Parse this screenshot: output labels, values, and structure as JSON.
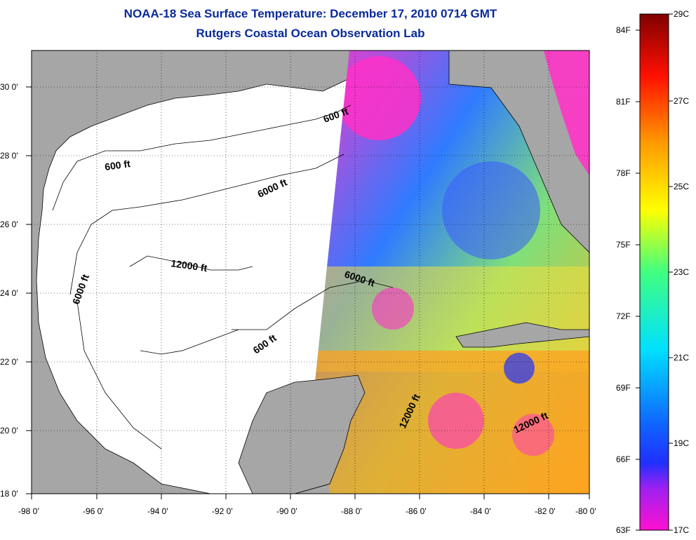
{
  "title": {
    "line1": "NOAA-18 Sea Surface Temperature:  December 17, 2010 0714 GMT",
    "line2": "Rutgers Coastal Ocean Observation Lab"
  },
  "map": {
    "x_ticks": [
      "-98 0'",
      "-96 0'",
      "-94 0'",
      "-92 0'",
      "-90 0'",
      "-88 0'",
      "-86 0'",
      "-84 0'",
      "-82 0'",
      "-80 0'"
    ],
    "y_ticks": [
      "30 0'",
      "28 0'",
      "26 0'",
      "24 0'",
      "22 0'",
      "20 0'",
      "18 0'"
    ],
    "contour_labels": [
      {
        "text": "600 ft"
      },
      {
        "text": "600 ft"
      },
      {
        "text": "6000 ft"
      },
      {
        "text": "6000 ft"
      },
      {
        "text": "12000 ft"
      },
      {
        "text": "6000 ft"
      },
      {
        "text": "600 ft"
      },
      {
        "text": "12000 ft"
      },
      {
        "text": "12000 ft"
      }
    ],
    "colors": {
      "land": "#a6a6a6",
      "no_data": "#ffffff",
      "cold": "#ff2fc8",
      "warm": "#ff9a1a"
    }
  },
  "colorbar": {
    "fahrenheit_labels": [
      "84F",
      "81F",
      "78F",
      "75F",
      "72F",
      "69F",
      "66F",
      "63F"
    ],
    "celsius_labels": [
      "29C",
      "27C",
      "25C",
      "23C",
      "21C",
      "19C",
      "17C"
    ],
    "range_c": [
      17,
      29
    ]
  }
}
